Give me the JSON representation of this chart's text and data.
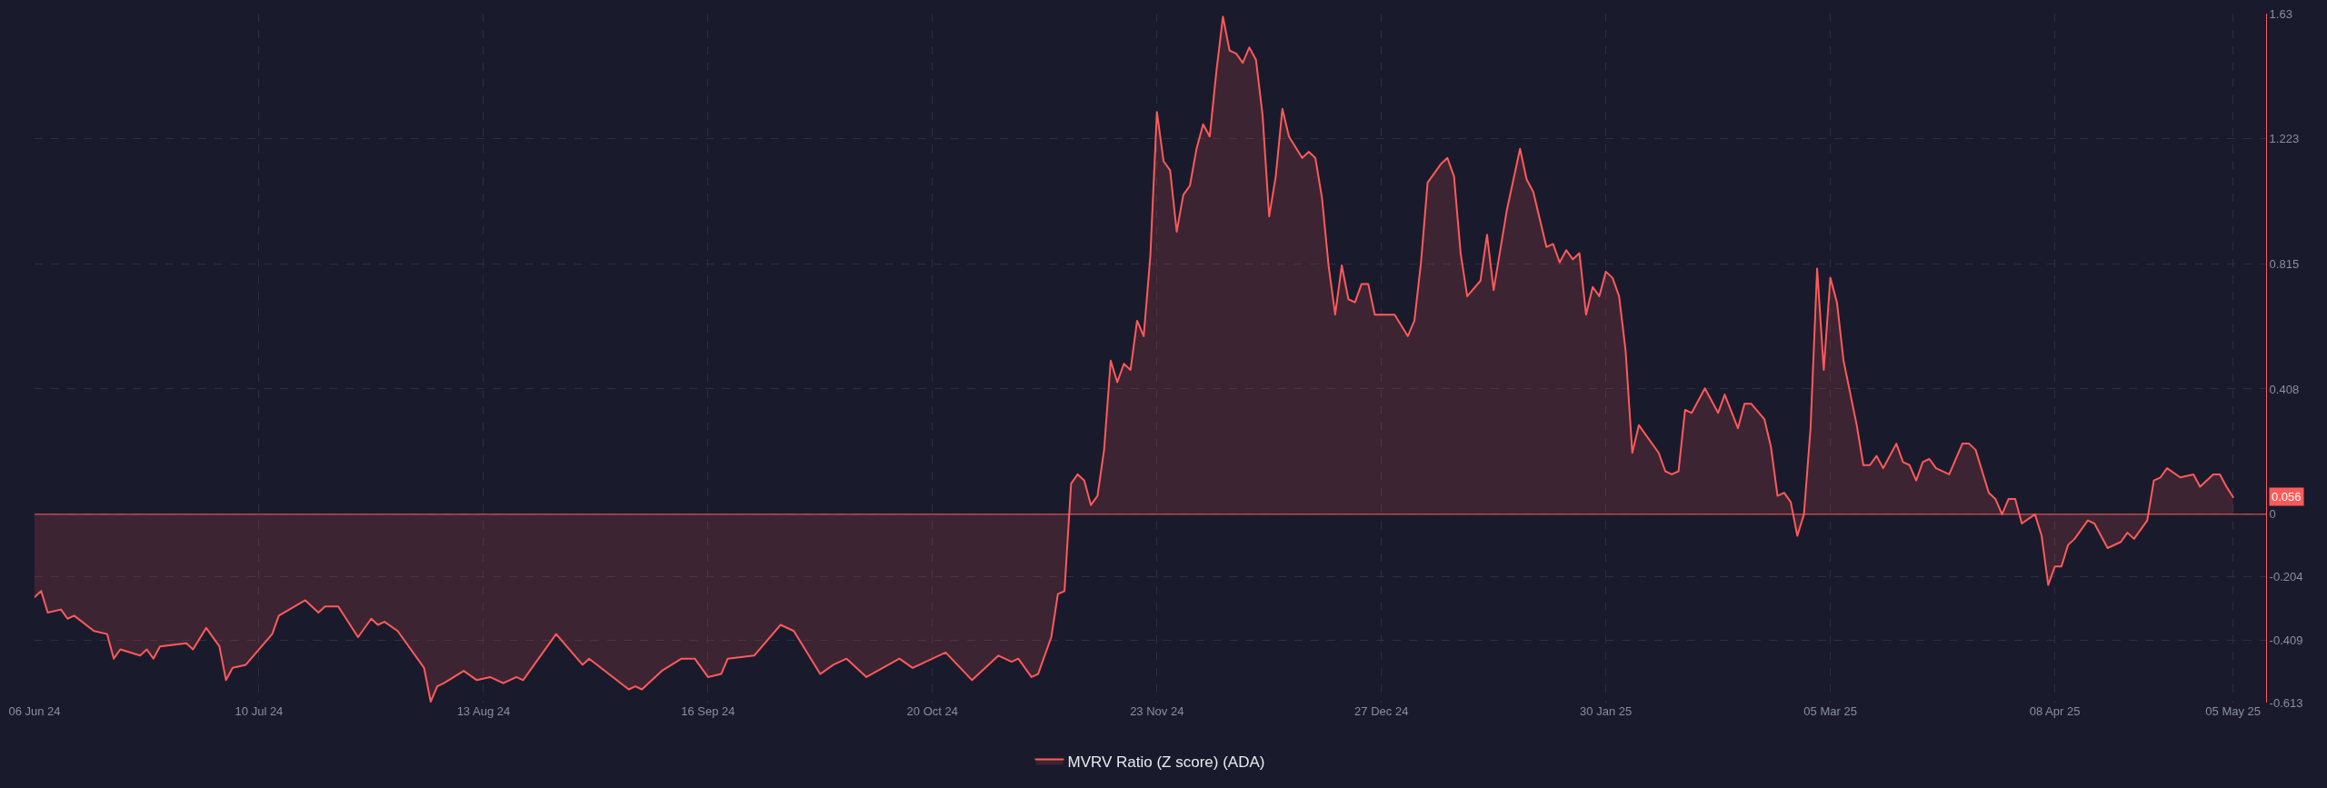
{
  "chart_data": {
    "type": "area",
    "x": [
      "2024-06-06",
      "2024-06-07",
      "2024-06-08",
      "2024-06-10",
      "2024-06-11",
      "2024-06-12",
      "2024-06-15",
      "2024-06-17",
      "2024-06-18",
      "2024-06-19",
      "2024-06-22",
      "2024-06-23",
      "2024-06-24",
      "2024-06-25",
      "2024-06-29",
      "2024-06-30",
      "2024-07-02",
      "2024-07-04",
      "2024-07-05",
      "2024-07-06",
      "2024-07-08",
      "2024-07-12",
      "2024-07-13",
      "2024-07-17",
      "2024-07-19",
      "2024-07-20",
      "2024-07-22",
      "2024-07-25",
      "2024-07-27",
      "2024-07-28",
      "2024-07-29",
      "2024-07-31",
      "2024-08-04",
      "2024-08-05",
      "2024-08-06",
      "2024-08-07",
      "2024-08-10",
      "2024-08-12",
      "2024-08-14",
      "2024-08-16",
      "2024-08-18",
      "2024-08-19",
      "2024-08-24",
      "2024-08-28",
      "2024-08-29",
      "2024-09-04",
      "2024-09-05",
      "2024-09-06",
      "2024-09-09",
      "2024-09-12",
      "2024-09-14",
      "2024-09-16",
      "2024-09-18",
      "2024-09-19",
      "2024-09-23",
      "2024-09-27",
      "2024-09-29",
      "2024-10-03",
      "2024-10-05",
      "2024-10-07",
      "2024-10-10",
      "2024-10-15",
      "2024-10-17",
      "2024-10-22",
      "2024-10-26",
      "2024-10-30",
      "2024-11-01",
      "2024-11-02",
      "2024-11-04",
      "2024-11-05",
      "2024-11-07",
      "2024-11-08",
      "2024-11-09",
      "2024-11-10",
      "2024-11-11",
      "2024-11-12",
      "2024-11-13",
      "2024-11-14",
      "2024-11-15",
      "2024-11-16",
      "2024-11-17",
      "2024-11-18",
      "2024-11-19",
      "2024-11-20",
      "2024-11-21",
      "2024-11-22",
      "2024-11-23",
      "2024-11-24",
      "2024-11-25",
      "2024-11-26",
      "2024-11-27",
      "2024-11-28",
      "2024-11-29",
      "2024-11-30",
      "2024-12-01",
      "2024-12-02",
      "2024-12-03",
      "2024-12-04",
      "2024-12-05",
      "2024-12-06",
      "2024-12-07",
      "2024-12-08",
      "2024-12-09",
      "2024-12-10",
      "2024-12-11",
      "2024-12-12",
      "2024-12-13",
      "2024-12-15",
      "2024-12-16",
      "2024-12-17",
      "2024-12-18",
      "2024-12-19",
      "2024-12-20",
      "2024-12-21",
      "2024-12-22",
      "2024-12-23",
      "2024-12-24",
      "2024-12-25",
      "2024-12-26",
      "2024-12-28",
      "2024-12-29",
      "2024-12-31",
      "2025-01-01",
      "2025-01-02",
      "2025-01-03",
      "2025-01-05",
      "2025-01-06",
      "2025-01-07",
      "2025-01-08",
      "2025-01-09",
      "2025-01-11",
      "2025-01-12",
      "2025-01-13",
      "2025-01-15",
      "2025-01-17",
      "2025-01-18",
      "2025-01-19",
      "2025-01-21",
      "2025-01-22",
      "2025-01-23",
      "2025-01-24",
      "2025-01-25",
      "2025-01-26",
      "2025-01-27",
      "2025-01-28",
      "2025-01-29",
      "2025-01-30",
      "2025-01-31",
      "2025-02-01",
      "2025-02-02",
      "2025-02-03",
      "2025-02-04",
      "2025-02-07",
      "2025-02-08",
      "2025-02-09",
      "2025-02-10",
      "2025-02-11",
      "2025-02-12",
      "2025-02-14",
      "2025-02-16",
      "2025-02-17",
      "2025-02-19",
      "2025-02-20",
      "2025-02-21",
      "2025-02-23",
      "2025-02-24",
      "2025-02-25",
      "2025-02-26",
      "2025-02-27",
      "2025-02-28",
      "2025-03-01",
      "2025-03-02",
      "2025-03-03",
      "2025-03-04",
      "2025-03-05",
      "2025-03-06",
      "2025-03-07",
      "2025-03-09",
      "2025-03-10",
      "2025-03-11",
      "2025-03-12",
      "2025-03-13",
      "2025-03-15",
      "2025-03-16",
      "2025-03-17",
      "2025-03-18",
      "2025-03-19",
      "2025-03-20",
      "2025-03-21",
      "2025-03-23",
      "2025-03-25",
      "2025-03-26",
      "2025-03-27",
      "2025-03-29",
      "2025-03-30",
      "2025-03-31",
      "2025-04-01",
      "2025-04-02",
      "2025-04-03",
      "2025-04-05",
      "2025-04-06",
      "2025-04-07",
      "2025-04-08",
      "2025-04-09",
      "2025-04-10",
      "2025-04-11",
      "2025-04-13",
      "2025-04-14",
      "2025-04-16",
      "2025-04-18",
      "2025-04-19",
      "2025-04-20",
      "2025-04-22",
      "2025-04-23",
      "2025-04-24",
      "2025-04-25",
      "2025-04-27",
      "2025-04-29",
      "2025-04-30",
      "2025-05-02",
      "2025-05-03",
      "2025-05-04",
      "2025-05-05"
    ],
    "series": [
      {
        "name": "MVRV Ratio (Z score) (ADA)",
        "color": "#ff5a5a",
        "values": [
          -0.27,
          -0.25,
          -0.32,
          -0.31,
          -0.34,
          -0.33,
          -0.38,
          -0.39,
          -0.47,
          -0.44,
          -0.46,
          -0.44,
          -0.47,
          -0.43,
          -0.42,
          -0.44,
          -0.37,
          -0.43,
          -0.54,
          -0.5,
          -0.49,
          -0.39,
          -0.33,
          -0.28,
          -0.32,
          -0.3,
          -0.3,
          -0.4,
          -0.34,
          -0.36,
          -0.35,
          -0.38,
          -0.5,
          -0.61,
          -0.56,
          -0.55,
          -0.51,
          -0.54,
          -0.53,
          -0.55,
          -0.53,
          -0.54,
          -0.39,
          -0.49,
          -0.47,
          -0.57,
          -0.56,
          -0.57,
          -0.51,
          -0.47,
          -0.47,
          -0.53,
          -0.52,
          -0.47,
          -0.46,
          -0.36,
          -0.38,
          -0.52,
          -0.49,
          -0.47,
          -0.53,
          -0.47,
          -0.5,
          -0.45,
          -0.54,
          -0.46,
          -0.48,
          -0.47,
          -0.53,
          -0.52,
          -0.4,
          -0.26,
          -0.25,
          0.1,
          0.13,
          0.11,
          0.03,
          0.06,
          0.21,
          0.5,
          0.43,
          0.49,
          0.47,
          0.63,
          0.58,
          0.84,
          1.31,
          1.15,
          1.12,
          0.92,
          1.04,
          1.07,
          1.19,
          1.27,
          1.23,
          1.44,
          1.62,
          1.51,
          1.5,
          1.47,
          1.52,
          1.48,
          1.3,
          0.97,
          1.1,
          1.32,
          1.23,
          1.16,
          1.18,
          1.16,
          1.03,
          0.81,
          0.65,
          0.81,
          0.7,
          0.69,
          0.75,
          0.75,
          0.65,
          0.65,
          0.65,
          0.58,
          0.63,
          0.82,
          1.08,
          1.14,
          1.16,
          1.1,
          0.85,
          0.71,
          0.76,
          0.91,
          0.73,
          0.99,
          1.19,
          1.09,
          1.05,
          0.87,
          0.88,
          0.82,
          0.86,
          0.83,
          0.85,
          0.65,
          0.74,
          0.71,
          0.79,
          0.77,
          0.71,
          0.53,
          0.2,
          0.29,
          0.2,
          0.14,
          0.13,
          0.14,
          0.34,
          0.33,
          0.41,
          0.33,
          0.39,
          0.28,
          0.36,
          0.36,
          0.31,
          0.22,
          0.06,
          0.07,
          0.04,
          -0.07,
          0.0,
          0.28,
          0.8,
          0.47,
          0.77,
          0.69,
          0.5,
          0.29,
          0.16,
          0.16,
          0.19,
          0.15,
          0.23,
          0.17,
          0.16,
          0.11,
          0.17,
          0.18,
          0.15,
          0.13,
          0.23,
          0.23,
          0.21,
          0.07,
          0.05,
          0.0,
          0.05,
          0.05,
          -0.03,
          0.0,
          -0.07,
          -0.23,
          -0.17,
          -0.17,
          -0.1,
          -0.08,
          -0.02,
          -0.03,
          -0.11,
          -0.09,
          -0.06,
          -0.08,
          -0.02,
          0.11,
          0.12,
          0.15,
          0.12,
          0.13,
          0.09,
          0.13,
          0.13,
          0.09,
          0.056
        ]
      }
    ],
    "xlim": [
      "2024-06-06",
      "2025-05-10"
    ],
    "xticks": [
      {
        "value": "2024-06-06",
        "label": "06 Jun 24"
      },
      {
        "value": "2024-07-10",
        "label": "10 Jul 24"
      },
      {
        "value": "2024-08-13",
        "label": "13 Aug 24"
      },
      {
        "value": "2024-09-16",
        "label": "16 Sep 24"
      },
      {
        "value": "2024-10-20",
        "label": "20 Oct 24"
      },
      {
        "value": "2024-11-23",
        "label": "23 Nov 24"
      },
      {
        "value": "2024-12-27",
        "label": "27 Dec 24"
      },
      {
        "value": "2025-01-30",
        "label": "30 Jan 25"
      },
      {
        "value": "2025-03-05",
        "label": "05 Mar 25"
      },
      {
        "value": "2025-04-08",
        "label": "08 Apr 25"
      },
      {
        "value": "2025-05-05",
        "label": "05 May 25"
      }
    ],
    "ylim": [
      -0.613,
      1.63
    ],
    "yticks": [
      -0.613,
      -0.409,
      -0.204,
      0,
      0.408,
      0.815,
      1.223,
      1.63
    ],
    "ref_lines": [
      {
        "axis": "y",
        "value": 0,
        "color": "#ff5a5a"
      }
    ],
    "annotations": [
      "0.056"
    ],
    "grid": true,
    "legend": "bottom"
  }
}
